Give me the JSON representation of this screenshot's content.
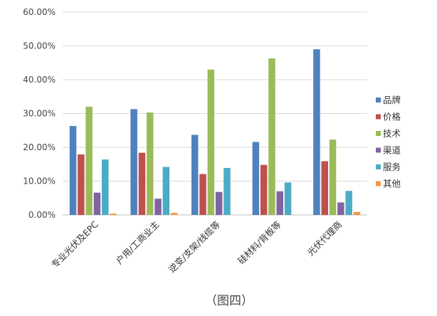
{
  "chart_data": {
    "type": "bar",
    "categories": [
      "专业光伏及EPC",
      "户用/工商业主",
      "逆变/支架/线缆等",
      "硅材料/背板等",
      "光伏代理商"
    ],
    "series": [
      {
        "name": "品牌",
        "color": "#4f81bd",
        "values": [
          26.3,
          31.3,
          23.7,
          21.6,
          49.0
        ]
      },
      {
        "name": "价格",
        "color": "#c0504d",
        "values": [
          17.9,
          18.4,
          12.1,
          14.8,
          15.9
        ]
      },
      {
        "name": "技术",
        "color": "#9bbb59",
        "values": [
          32.0,
          30.3,
          43.0,
          46.3,
          22.3
        ]
      },
      {
        "name": "渠道",
        "color": "#8064a2",
        "values": [
          6.6,
          4.8,
          6.8,
          7.0,
          3.7
        ]
      },
      {
        "name": "服务",
        "color": "#4bacc6",
        "values": [
          16.4,
          14.2,
          13.9,
          9.6,
          7.1
        ]
      },
      {
        "name": "其他",
        "color": "#f79646",
        "values": [
          0.4,
          0.6,
          0.0,
          0.0,
          0.9
        ]
      }
    ],
    "ylim": [
      0,
      60
    ],
    "yticks": [
      "0.00%",
      "10.00%",
      "20.00%",
      "30.00%",
      "40.00%",
      "50.00%",
      "60.00%"
    ],
    "grid": true,
    "legend": "right",
    "caption": "（图四）"
  }
}
